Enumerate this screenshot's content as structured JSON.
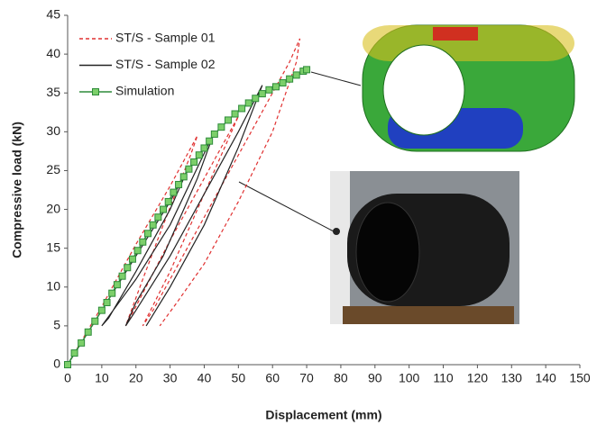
{
  "chart_data": {
    "type": "line",
    "xlabel": "Displacement (mm)",
    "ylabel": "Compressive load (kN)",
    "xlim": [
      0,
      150
    ],
    "ylim": [
      0,
      45
    ],
    "xticks": [
      0,
      10,
      20,
      30,
      40,
      50,
      60,
      70,
      80,
      90,
      100,
      110,
      120,
      130,
      140,
      150
    ],
    "yticks": [
      0,
      5,
      10,
      15,
      20,
      25,
      30,
      35,
      40,
      45
    ],
    "series": [
      {
        "name": "ST/S - Sample 01",
        "color": "#e03030",
        "dash": "4,3",
        "marker": false,
        "x": [
          0,
          10,
          20,
          30,
          38,
          36,
          28,
          22,
          17,
          20,
          30,
          40,
          50,
          47,
          38,
          30,
          22,
          25,
          35,
          45,
          55,
          65,
          68,
          67,
          60,
          50,
          40,
          32,
          27
        ],
        "values": [
          0,
          7.5,
          15.5,
          23,
          29.5,
          27,
          18,
          11,
          5,
          7.5,
          16,
          24,
          32,
          29,
          20,
          12,
          5,
          7,
          15,
          23,
          31,
          39,
          42,
          39,
          30,
          21,
          13,
          8,
          5
        ]
      },
      {
        "name": "ST/S - Sample 02",
        "color": "#222222",
        "dash": "none",
        "marker": false,
        "x": [
          0,
          10,
          20,
          30,
          35,
          30,
          20,
          12,
          10,
          20,
          30,
          43,
          38,
          28,
          20,
          17,
          20,
          30,
          40,
          50,
          57,
          50,
          40,
          30,
          23
        ],
        "values": [
          0,
          7,
          14,
          21,
          25,
          20,
          12,
          6,
          5,
          11,
          18,
          30,
          24,
          14,
          8,
          5,
          7,
          14,
          22,
          30,
          36,
          28,
          18,
          10,
          5
        ]
      },
      {
        "name": "Simulation",
        "color": "#2e8b3a",
        "dash": "none",
        "marker": true,
        "x": [
          0,
          2,
          4,
          6,
          8,
          10,
          11.5,
          13,
          14.5,
          16,
          17.5,
          19,
          20.5,
          22,
          23.5,
          25,
          26.5,
          28,
          29.5,
          31,
          32.5,
          34,
          35.5,
          37,
          38.5,
          40,
          41.5,
          43,
          45,
          47,
          49,
          51,
          53,
          55,
          57,
          59,
          61,
          63,
          65,
          67,
          69,
          70
        ],
        "values": [
          0,
          1.5,
          2.8,
          4.2,
          5.6,
          7,
          8,
          9.2,
          10.3,
          11.4,
          12.5,
          13.6,
          14.7,
          15.8,
          16.9,
          18,
          19,
          20,
          21,
          22.2,
          23.2,
          24.2,
          25.2,
          26.1,
          27,
          27.9,
          28.8,
          29.7,
          30.6,
          31.5,
          32.3,
          33,
          33.7,
          34.3,
          34.9,
          35.4,
          35.8,
          36.3,
          36.8,
          37.3,
          37.8,
          38
        ]
      }
    ]
  }
}
